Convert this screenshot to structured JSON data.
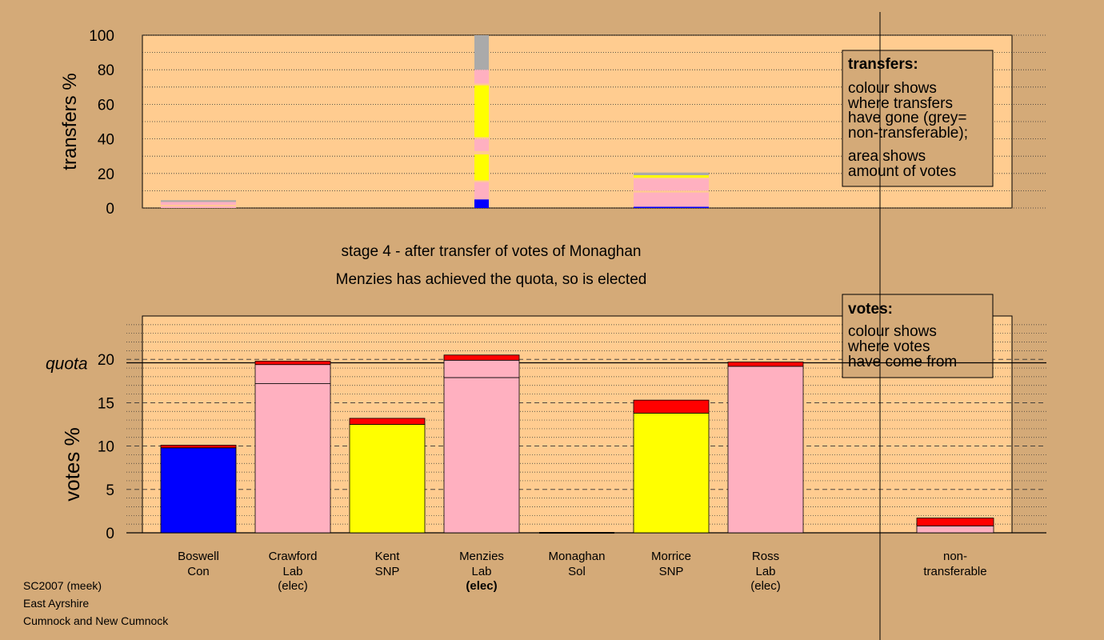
{
  "captions": {
    "stage": "stage 4 - after transfer of votes of Monaghan",
    "outcome": "Menzies has achieved the quota, so is elected"
  },
  "legend_transfers": {
    "title": "transfers:",
    "lines": [
      "colour shows",
      "where transfers",
      "have gone (grey=",
      "non-transferable);"
    ],
    "lines2": [
      "area shows",
      "amount of votes"
    ]
  },
  "legend_votes": {
    "title": "votes:",
    "lines": [
      "colour shows",
      "where votes",
      "have come from"
    ]
  },
  "footer": {
    "line1": "SC2007 (meek)",
    "line2": "East Ayrshire",
    "line3": "Cumnock and New Cumnock"
  },
  "colors": {
    "background": "#d4aa78",
    "plot": "#ffcc90",
    "Con": "#0000ff",
    "Lab": "#ffb0c0",
    "SNP": "#ffff00",
    "transfer": "#ff0000",
    "nontransferable": "#aaaaaa"
  },
  "chart_data": [
    {
      "type": "bar",
      "ylabel": "transfers %",
      "ylim": [
        0,
        100
      ],
      "yticks": [
        0,
        20,
        40,
        60,
        80,
        100
      ],
      "columns": [
        {
          "position": 1,
          "segments": [
            {
              "color": "#ffb0c0",
              "value": 1.0
            },
            {
              "color": "#ffcc90",
              "value": 0.8
            },
            {
              "color": "#ffb0c0",
              "value": 1.7
            },
            {
              "color": "#aaaaaa",
              "value": 1.0
            }
          ]
        },
        {
          "position": 4,
          "segments": [
            {
              "color": "#0000ff",
              "value": 5
            },
            {
              "color": "#ffb0c0",
              "value": 10
            },
            {
              "color": "#ffcc90",
              "value": 1
            },
            {
              "color": "#ffff00",
              "value": 15
            },
            {
              "color": "#ffcc90",
              "value": 2
            },
            {
              "color": "#ffb0c0",
              "value": 7
            },
            {
              "color": "#ffcc90",
              "value": 1
            },
            {
              "color": "#ffff00",
              "value": 30
            },
            {
              "color": "#ffcc90",
              "value": 1
            },
            {
              "color": "#ffb0c0",
              "value": 8
            },
            {
              "color": "#aaaaaa",
              "value": 20
            }
          ]
        },
        {
          "position": 6,
          "segments": [
            {
              "color": "#0000ff",
              "value": 0.7
            },
            {
              "color": "#ffb0c0",
              "value": 8.3
            },
            {
              "color": "#ffcc90",
              "value": 1
            },
            {
              "color": "#ffb0c0",
              "value": 7
            },
            {
              "color": "#ffcc90",
              "value": 0.6
            },
            {
              "color": "#ffff00",
              "value": 1.4
            },
            {
              "color": "#aaaaaa",
              "value": 1.5
            }
          ]
        }
      ]
    },
    {
      "type": "bar",
      "ylabel": "votes %",
      "ylim": [
        0,
        25
      ],
      "yticks": [
        0,
        5,
        10,
        15,
        20
      ],
      "quota": 19.6,
      "quota_label": "quota",
      "categories": [
        {
          "name": "Boswell",
          "party": "Con",
          "note": "",
          "segments": [
            {
              "color": "#0000ff",
              "value": 9.8
            },
            {
              "color": "#ff0000",
              "value": 0.3
            }
          ]
        },
        {
          "name": "Crawford",
          "party": "Lab",
          "note": "(elec)",
          "segments": [
            {
              "color": "#ffb0c0",
              "value": 17.2
            },
            {
              "color": "#ffb0c0",
              "value": 2.2
            },
            {
              "color": "#ff0000",
              "value": 0.4
            }
          ]
        },
        {
          "name": "Kent",
          "party": "SNP",
          "note": "",
          "segments": [
            {
              "color": "#ffff00",
              "value": 12.5
            },
            {
              "color": "#ff0000",
              "value": 0.7
            }
          ]
        },
        {
          "name": "Menzies",
          "party": "Lab",
          "note": "(elec)",
          "note_bold": true,
          "segments": [
            {
              "color": "#ffb0c0",
              "value": 17.9
            },
            {
              "color": "#ffb0c0",
              "value": 2.0
            },
            {
              "color": "#ff0000",
              "value": 0.6
            }
          ]
        },
        {
          "name": "Monaghan",
          "party": "Sol",
          "note": "",
          "segments": []
        },
        {
          "name": "Morrice",
          "party": "SNP",
          "note": "",
          "segments": [
            {
              "color": "#ffff00",
              "value": 13.8
            },
            {
              "color": "#ff0000",
              "value": 1.5
            }
          ]
        },
        {
          "name": "Ross",
          "party": "Lab",
          "note": "(elec)",
          "segments": [
            {
              "color": "#ffb0c0",
              "value": 19.2
            },
            {
              "color": "#ff0000",
              "value": 0.5
            }
          ]
        },
        {
          "name": "non-",
          "party": "transferable",
          "note": "",
          "position": 8.5,
          "segments": [
            {
              "color": "#ffb0c0",
              "value": 0.8
            },
            {
              "color": "#ff0000",
              "value": 0.9
            }
          ]
        }
      ]
    }
  ]
}
